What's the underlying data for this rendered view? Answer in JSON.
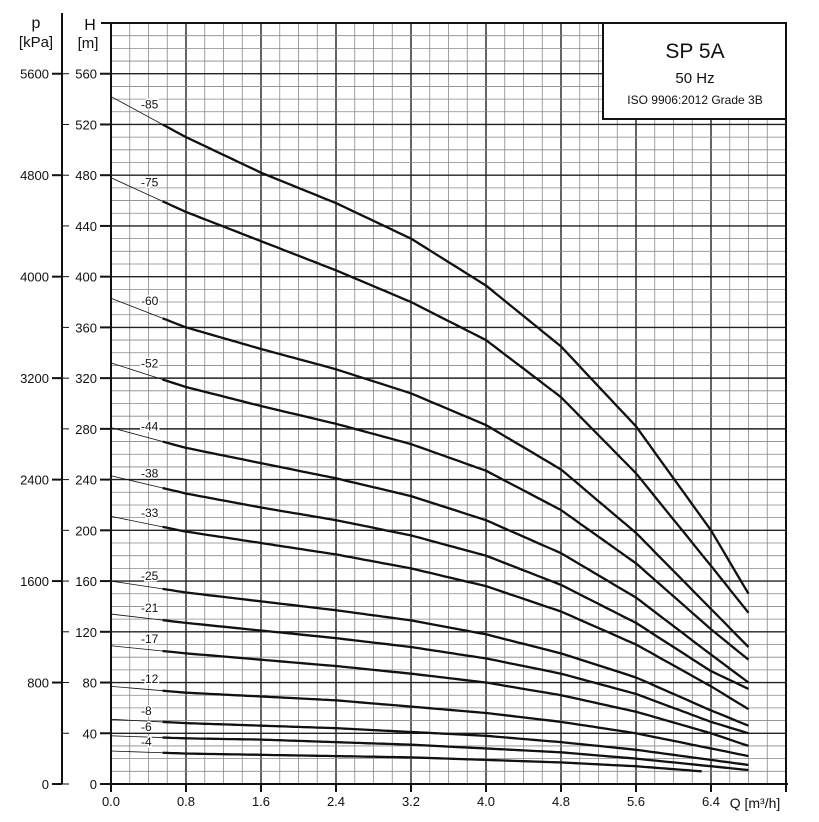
{
  "chart_data": {
    "type": "line",
    "title": "SP 5A",
    "subtitle": "50 Hz",
    "standard": "ISO 9906:2012 Grade 3B",
    "xlabel": "Q [m³/h]",
    "ylabel": "H",
    "ylabel_unit": "[m]",
    "y2label": "p",
    "y2label_unit": "[kPa]",
    "xlim": [
      0,
      7.2
    ],
    "ylim": [
      0,
      600
    ],
    "y2lim": [
      0,
      6000
    ],
    "grid": true,
    "x_ticks": [
      "0.0",
      "0.8",
      "1.6",
      "2.4",
      "3.2",
      "4.0",
      "4.8",
      "5.6",
      "6.4"
    ],
    "y_ticks": [
      "0",
      "40",
      "80",
      "120",
      "160",
      "200",
      "240",
      "280",
      "320",
      "360",
      "400",
      "440",
      "480",
      "520",
      "560"
    ],
    "y2_ticks": [
      "0",
      "800",
      "1600",
      "2400",
      "3200",
      "4000",
      "4800",
      "5600"
    ],
    "colors": {
      "line": "#111111",
      "grid_major": "#222222",
      "grid_minor": "#888888"
    },
    "x": [
      0,
      0.8,
      1.6,
      2.4,
      3.2,
      4.0,
      4.8,
      5.6,
      6.4,
      6.8
    ],
    "series": [
      {
        "name": "-85",
        "values": [
          542,
          510,
          482,
          458,
          430,
          393,
          345,
          282,
          200,
          150
        ]
      },
      {
        "name": "-75",
        "values": [
          478,
          451,
          428,
          405,
          380,
          350,
          305,
          245,
          172,
          135
        ]
      },
      {
        "name": "-60",
        "values": [
          383,
          360,
          343,
          327,
          308,
          283,
          248,
          198,
          138,
          108
        ]
      },
      {
        "name": "-52",
        "values": [
          332,
          313,
          298,
          284,
          268,
          247,
          216,
          174,
          122,
          98
        ]
      },
      {
        "name": "-44",
        "values": [
          281,
          265,
          253,
          241,
          227,
          208,
          182,
          147,
          102,
          80
        ]
      },
      {
        "name": "-38",
        "values": [
          243,
          229,
          218,
          208,
          196,
          180,
          157,
          127,
          89,
          75
        ]
      },
      {
        "name": "-33",
        "values": [
          211,
          199,
          190,
          181,
          170,
          156,
          136,
          110,
          77,
          59
        ]
      },
      {
        "name": "-25",
        "values": [
          160,
          151,
          144,
          137,
          129,
          118,
          103,
          84,
          58,
          46
        ]
      },
      {
        "name": "-21",
        "values": [
          134,
          127,
          121,
          115,
          108,
          99,
          87,
          71,
          49,
          40
        ]
      },
      {
        "name": "-17",
        "values": [
          109,
          103,
          98,
          93,
          87,
          80,
          70,
          57,
          40,
          30
        ]
      },
      {
        "name": "-12",
        "values": [
          77,
          72,
          69,
          66,
          61,
          56,
          49,
          40,
          28,
          22
        ]
      },
      {
        "name": "-8",
        "values": [
          51,
          48,
          46,
          44,
          41,
          38,
          33,
          27,
          19,
          15
        ]
      },
      {
        "name": "-6",
        "values": [
          38,
          36,
          35,
          33,
          31,
          28,
          25,
          20,
          14,
          11
        ]
      },
      {
        "name": "-4",
        "values": [
          26,
          24,
          23,
          22,
          21,
          19,
          17,
          14,
          10,
          null
        ],
        "end_q": 6.3
      }
    ]
  }
}
